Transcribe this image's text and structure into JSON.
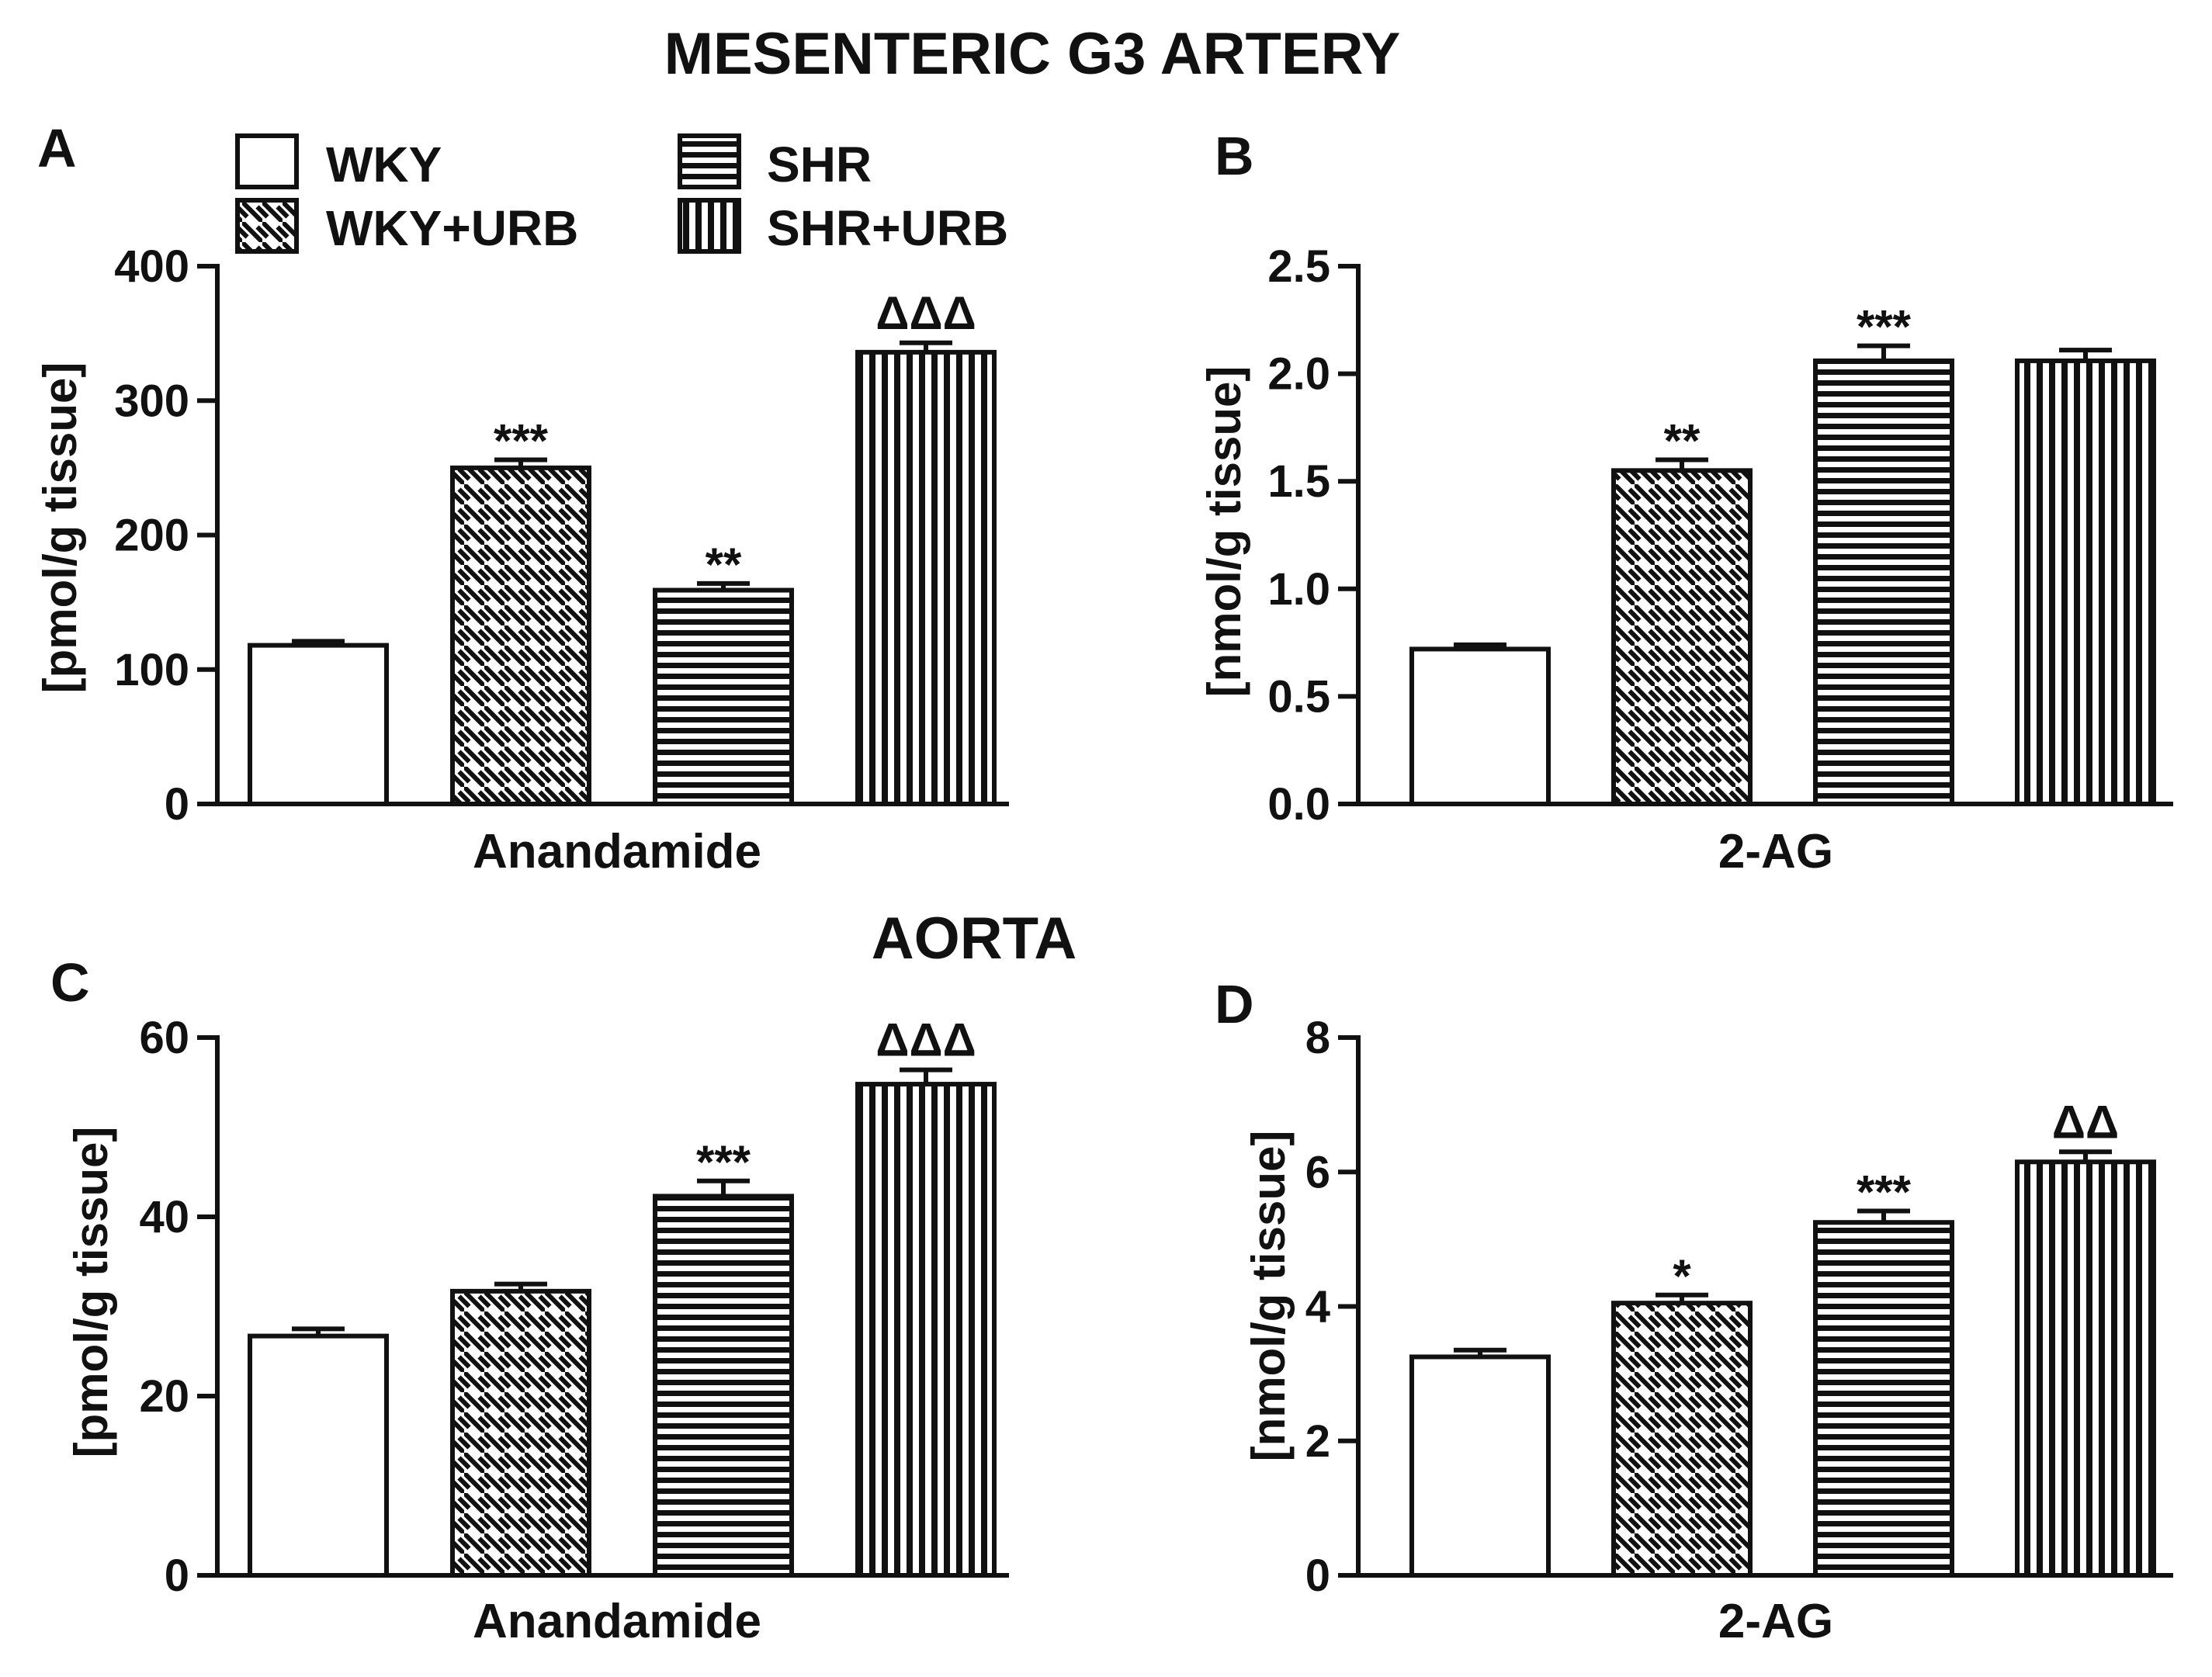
{
  "colors": {
    "ink": "#111111",
    "background": "#ffffff"
  },
  "titles": {
    "top": "MESENTERIC G3 ARTERY",
    "bottom": "AORTA"
  },
  "legend": {
    "items": [
      {
        "label": "WKY",
        "pattern": "open"
      },
      {
        "label": "WKY+URB",
        "pattern": "diagonal"
      },
      {
        "label": "SHR",
        "pattern": "horizontal"
      },
      {
        "label": "SHR+URB",
        "pattern": "vertical"
      }
    ]
  },
  "chart_data": [
    {
      "type": "bar",
      "panel": "A",
      "section": "MESENTERIC G3 ARTERY",
      "xlabel": "Anandamide",
      "ylabel": "[pmol/g tissue]",
      "ylim": [
        0,
        400
      ],
      "yticks": [
        0,
        100,
        200,
        300,
        400
      ],
      "ytick_labels": [
        "0",
        "100",
        "200",
        "300",
        "400"
      ],
      "series": [
        {
          "name": "WKY",
          "value": 118,
          "error": 3,
          "annotation": ""
        },
        {
          "name": "WKY+URB",
          "value": 250,
          "error": 6,
          "annotation": "***"
        },
        {
          "name": "SHR",
          "value": 159,
          "error": 5,
          "annotation": "**"
        },
        {
          "name": "SHR+URB",
          "value": 336,
          "error": 7,
          "annotation": "ΔΔΔ"
        }
      ]
    },
    {
      "type": "bar",
      "panel": "B",
      "section": "MESENTERIC G3 ARTERY",
      "xlabel": "2-AG",
      "ylabel": "[nmol/g tissue]",
      "ylim": [
        0,
        2.5
      ],
      "yticks": [
        0,
        0.5,
        1.0,
        1.5,
        2.0,
        2.5
      ],
      "ytick_labels": [
        "0.0",
        "0.5",
        "1.0",
        "1.5",
        "2.0",
        "2.5"
      ],
      "series": [
        {
          "name": "WKY",
          "value": 0.72,
          "error": 0.02,
          "annotation": ""
        },
        {
          "name": "WKY+URB",
          "value": 1.55,
          "error": 0.05,
          "annotation": "**"
        },
        {
          "name": "SHR",
          "value": 2.06,
          "error": 0.07,
          "annotation": "***"
        },
        {
          "name": "SHR+URB",
          "value": 2.06,
          "error": 0.05,
          "annotation": ""
        }
      ]
    },
    {
      "type": "bar",
      "panel": "C",
      "section": "AORTA",
      "xlabel": "Anandamide",
      "ylabel": "[pmol/g tissue]",
      "ylim": [
        0,
        60
      ],
      "yticks": [
        0,
        20,
        40,
        60
      ],
      "ytick_labels": [
        "0",
        "20",
        "40",
        "60"
      ],
      "series": [
        {
          "name": "WKY",
          "value": 26.7,
          "error": 0.8,
          "annotation": ""
        },
        {
          "name": "WKY+URB",
          "value": 31.7,
          "error": 0.8,
          "annotation": ""
        },
        {
          "name": "SHR",
          "value": 42.3,
          "error": 1.7,
          "annotation": "***"
        },
        {
          "name": "SHR+URB",
          "value": 54.8,
          "error": 1.6,
          "annotation": "ΔΔΔ"
        }
      ]
    },
    {
      "type": "bar",
      "panel": "D",
      "section": "AORTA",
      "xlabel": "2-AG",
      "ylabel": "[nmol/g tissue]",
      "ylim": [
        0,
        8
      ],
      "yticks": [
        0,
        2,
        4,
        6,
        8
      ],
      "ytick_labels": [
        "0",
        "2",
        "4",
        "6",
        "8"
      ],
      "series": [
        {
          "name": "WKY",
          "value": 3.25,
          "error": 0.1,
          "annotation": ""
        },
        {
          "name": "WKY+URB",
          "value": 4.05,
          "error": 0.12,
          "annotation": "*"
        },
        {
          "name": "SHR",
          "value": 5.25,
          "error": 0.17,
          "annotation": "***"
        },
        {
          "name": "SHR+URB",
          "value": 6.15,
          "error": 0.15,
          "annotation": "ΔΔ"
        }
      ]
    }
  ]
}
